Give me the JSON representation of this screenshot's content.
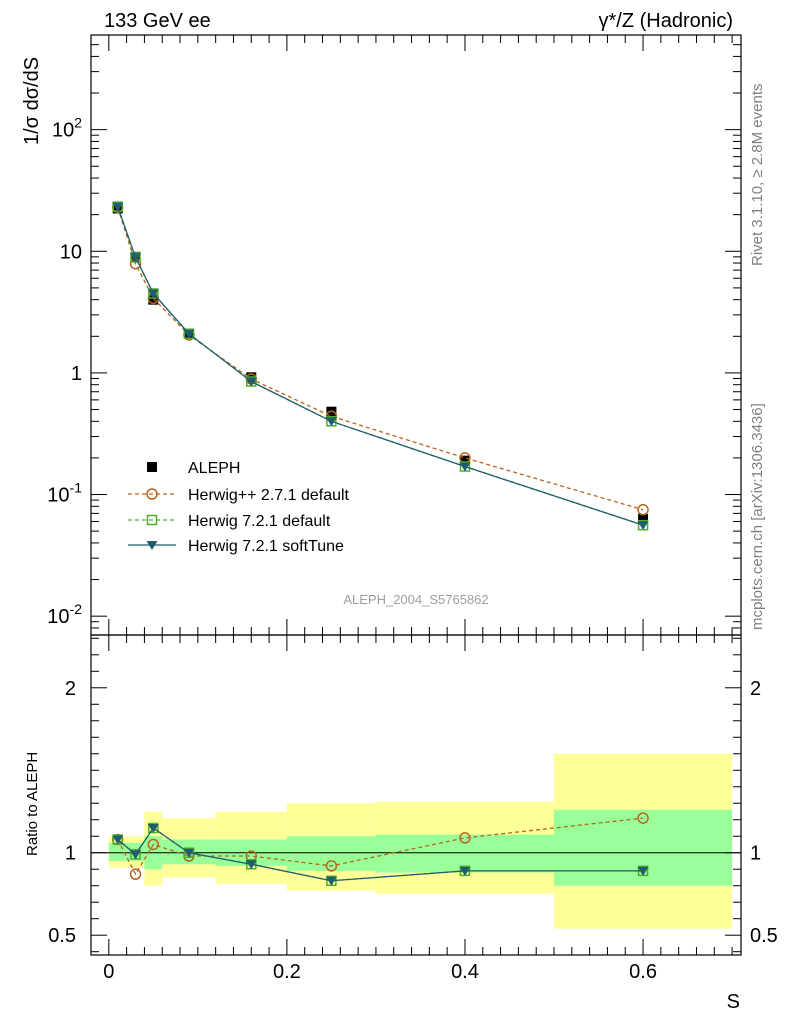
{
  "header": {
    "left": "133 GeV ee",
    "right_prefix": "γ*/Z (Hadronic)"
  },
  "side": {
    "top": "Rivet 3.1.10, ≥ 2.8M events",
    "bottom": "mcplots.cern.ch [arXiv:1306.3436]"
  },
  "watermark": "ALEPH_2004_S5765862",
  "chart_data": [
    {
      "type": "scatter",
      "ylabel": "1/σ  dσ/dS",
      "yscale": "log",
      "ylim": [
        0.007,
        600
      ],
      "xlim": [
        -0.02,
        0.71
      ],
      "x": [
        0.01,
        0.03,
        0.05,
        0.09,
        0.16,
        0.25,
        0.4,
        0.6
      ],
      "y_tick_labels": [
        "10^-2",
        "10^-1",
        "1",
        "10",
        "10^2"
      ],
      "legend_position": "lower-left",
      "series": [
        {
          "name": "ALEPH",
          "color": "#000000",
          "values": [
            22.5,
            9.0,
            4.0,
            2.1,
            0.92,
            0.48,
            0.19,
            0.063
          ]
        },
        {
          "name": "Herwig++ 2.7.1 default",
          "color": "#b5651d",
          "values": [
            23.0,
            7.9,
            4.1,
            2.05,
            0.89,
            0.44,
            0.2,
            0.075
          ]
        },
        {
          "name": "Herwig 7.2.1 default",
          "color": "#4caf2b",
          "values": [
            23.3,
            8.9,
            4.5,
            2.1,
            0.85,
            0.4,
            0.17,
            0.056
          ]
        },
        {
          "name": "Herwig 7.2.1 softTune",
          "color": "#205e6e",
          "values": [
            23.3,
            8.9,
            4.5,
            2.1,
            0.85,
            0.4,
            0.17,
            0.056
          ]
        }
      ]
    },
    {
      "type": "line",
      "ylabel": "Ratio to ALEPH",
      "xlabel": "S",
      "ylim": [
        0.38,
        2.32
      ],
      "xlim": [
        -0.02,
        0.71
      ],
      "x_tick_labels": [
        "0",
        "0.2",
        "0.4",
        "0.6"
      ],
      "y_tick_labels": [
        "0.5",
        "1",
        "2"
      ],
      "x": [
        0.01,
        0.03,
        0.05,
        0.09,
        0.16,
        0.25,
        0.4,
        0.6
      ],
      "bin_edges": [
        0.0,
        0.02,
        0.04,
        0.06,
        0.12,
        0.2,
        0.3,
        0.5,
        0.7
      ],
      "band_inner": [
        [
          0.95,
          1.06
        ],
        [
          0.95,
          1.06
        ],
        [
          0.9,
          1.1
        ],
        [
          0.93,
          1.08
        ],
        [
          0.92,
          1.08
        ],
        [
          0.89,
          1.1
        ],
        [
          0.88,
          1.11
        ],
        [
          0.8,
          1.26
        ]
      ],
      "band_outer": [
        [
          0.91,
          1.1
        ],
        [
          0.91,
          1.1
        ],
        [
          0.8,
          1.25
        ],
        [
          0.85,
          1.21
        ],
        [
          0.81,
          1.25
        ],
        [
          0.77,
          1.3
        ],
        [
          0.75,
          1.31
        ],
        [
          0.54,
          1.6
        ]
      ],
      "series": [
        {
          "name": "Herwig++ 2.7.1 default",
          "color": "#b5651d",
          "values": [
            1.08,
            0.87,
            1.05,
            0.98,
            0.98,
            0.92,
            1.09,
            1.21
          ]
        },
        {
          "name": "Herwig 7.2.1 default",
          "color": "#4caf2b",
          "values": [
            1.08,
            0.99,
            1.15,
            1.0,
            0.93,
            0.83,
            0.89,
            0.89
          ]
        },
        {
          "name": "Herwig 7.2.1 softTune",
          "color": "#205e6e",
          "values": [
            1.08,
            0.99,
            1.15,
            1.0,
            0.93,
            0.83,
            0.89,
            0.89
          ]
        }
      ]
    }
  ]
}
